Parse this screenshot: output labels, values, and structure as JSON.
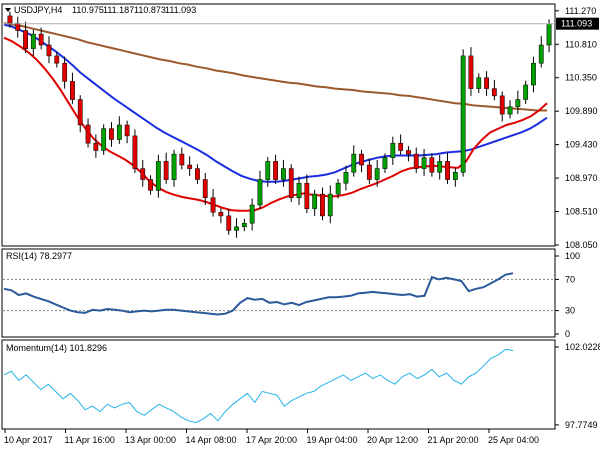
{
  "chart_data": [
    {
      "type": "candlestick",
      "title": "USDJPY,H4",
      "ohlc_header": [
        "110.975",
        "111.187",
        "110.873",
        "111.093"
      ],
      "current_price": 111.093,
      "current_price_label": "111.093",
      "ylim": [
        108.05,
        111.35
      ],
      "y_ticks": [
        111.27,
        110.81,
        110.35,
        109.89,
        109.43,
        108.97,
        108.51,
        108.05
      ],
      "y_tick_labels": [
        "111.270",
        "110.810",
        "110.350",
        "109.890",
        "109.430",
        "108.970",
        "108.510",
        "108.050"
      ],
      "x_tick_labels": [
        "10 Apr 2017",
        "11 Apr 16:00",
        "13 Apr 00:00",
        "14 Apr 08:00",
        "17 Apr 20:00",
        "19 Apr 04:00",
        "20 Apr 12:00",
        "21 Apr 20:00",
        "25 Apr 04:00"
      ],
      "colors": {
        "bull": "#00a000",
        "bear": "#e00000",
        "ma_fast": "#e00000",
        "ma_mid": "#1a2ee0",
        "ma_slow": "#9b5a2c"
      },
      "close": [
        111.1,
        111.0,
        110.75,
        110.95,
        110.8,
        110.65,
        110.55,
        110.3,
        110.05,
        109.7,
        109.45,
        109.35,
        109.65,
        109.5,
        109.7,
        109.55,
        109.1,
        108.95,
        108.8,
        109.2,
        108.95,
        109.3,
        109.15,
        109.1,
        108.95,
        108.7,
        108.5,
        108.45,
        108.25,
        108.3,
        108.35,
        108.6,
        108.95,
        109.2,
        108.95,
        109.1,
        108.7,
        108.9,
        108.55,
        108.75,
        108.45,
        108.75,
        108.9,
        109.05,
        109.3,
        109.15,
        108.95,
        109.1,
        109.25,
        109.45,
        109.35,
        109.3,
        109.1,
        109.25,
        109.05,
        109.2,
        108.95,
        109.05,
        110.65,
        110.2,
        110.35,
        110.2,
        110.1,
        109.85,
        109.95,
        110.05,
        110.25,
        110.55,
        110.8,
        111.093
      ],
      "ma_fast": [
        110.9,
        110.85,
        110.78,
        110.7,
        110.6,
        110.48,
        110.34,
        110.18,
        110.0,
        109.82,
        109.66,
        109.52,
        109.42,
        109.34,
        109.28,
        109.22,
        109.14,
        109.04,
        108.92,
        108.84,
        108.78,
        108.74,
        108.71,
        108.69,
        108.67,
        108.64,
        108.6,
        108.56,
        108.53,
        108.52,
        108.52,
        108.53,
        108.57,
        108.63,
        108.68,
        108.72,
        108.74,
        108.76,
        108.74,
        108.73,
        108.72,
        108.72,
        108.74,
        108.77,
        108.82,
        108.86,
        108.9,
        108.95,
        109.0,
        109.06,
        109.1,
        109.12,
        109.13,
        109.14,
        109.13,
        109.12,
        109.11,
        109.2,
        109.38,
        109.5,
        109.6,
        109.65,
        109.7,
        109.73,
        109.77,
        109.82,
        109.9,
        110.0
      ],
      "ma_mid": [
        111.08,
        111.05,
        111.0,
        110.95,
        110.88,
        110.8,
        110.72,
        110.63,
        110.53,
        110.42,
        110.33,
        110.24,
        110.15,
        110.06,
        109.98,
        109.9,
        109.82,
        109.74,
        109.66,
        109.59,
        109.53,
        109.47,
        109.41,
        109.35,
        109.28,
        109.2,
        109.13,
        109.06,
        109.0,
        108.96,
        108.93,
        108.92,
        108.92,
        108.93,
        108.95,
        108.97,
        108.99,
        109.0,
        109.02,
        109.05,
        109.1,
        109.15,
        109.19,
        109.22,
        109.25,
        109.27,
        109.28,
        109.28,
        109.28,
        109.28,
        109.29,
        109.3,
        109.32,
        109.33,
        109.34,
        109.36,
        109.4,
        109.44,
        109.48,
        109.52,
        109.56,
        109.6,
        109.65,
        109.72,
        109.8
      ],
      "ma_slow": [
        111.1,
        111.08,
        111.06,
        111.03,
        111.0,
        110.97,
        110.94,
        110.91,
        110.88,
        110.84,
        110.81,
        110.78,
        110.75,
        110.72,
        110.69,
        110.66,
        110.63,
        110.6,
        110.58,
        110.55,
        110.53,
        110.5,
        110.48,
        110.45,
        110.43,
        110.41,
        110.38,
        110.36,
        110.34,
        110.32,
        110.3,
        110.28,
        110.27,
        110.25,
        110.23,
        110.22,
        110.2,
        110.19,
        110.18,
        110.16,
        110.15,
        110.14,
        110.13,
        110.11,
        110.1,
        110.08,
        110.06,
        110.04,
        110.02,
        110.0,
        109.99,
        109.97,
        109.96,
        109.95,
        109.94,
        109.93,
        109.92,
        109.91,
        109.9,
        109.9
      ]
    },
    {
      "type": "line",
      "title": "RSI(14) 78.2977",
      "ylim": [
        0,
        100
      ],
      "y_ticks": [
        100,
        70,
        30,
        0
      ],
      "y_tick_labels": [
        "100",
        "70",
        "30",
        "0"
      ],
      "levels": [
        70,
        30
      ],
      "colors": {
        "line": "#2a5a9a"
      },
      "values": [
        58,
        56,
        50,
        52,
        48,
        45,
        42,
        38,
        34,
        30,
        28,
        27,
        31,
        30,
        32,
        31,
        30,
        28,
        29,
        30,
        29,
        30,
        31,
        31,
        30,
        29,
        28,
        27,
        26,
        25,
        26,
        30,
        40,
        46,
        44,
        45,
        40,
        41,
        38,
        40,
        37,
        41,
        43,
        45,
        47,
        47,
        48,
        49,
        52,
        53,
        54,
        53,
        52,
        51,
        50,
        51,
        48,
        49,
        73,
        70,
        72,
        70,
        68,
        55,
        58,
        60,
        65,
        70,
        76,
        78
      ]
    },
    {
      "type": "line",
      "title": "Momentum(14) 101.8296",
      "ylim": [
        97.77,
        102.0228
      ],
      "y_ticks": [
        102.0228,
        97.7749
      ],
      "y_tick_labels": [
        "102.0228",
        "97.7749"
      ],
      "colors": {
        "line": "#22b4ea"
      },
      "values": [
        100.5,
        100.7,
        100.2,
        100.5,
        100.1,
        99.7,
        100.0,
        99.6,
        99.2,
        99.5,
        99.1,
        98.6,
        98.8,
        98.5,
        98.9,
        98.7,
        98.9,
        99.0,
        98.5,
        98.3,
        98.6,
        98.9,
        98.7,
        98.5,
        98.2,
        98.0,
        97.9,
        98.1,
        98.4,
        98.0,
        98.5,
        98.9,
        99.2,
        99.5,
        99.0,
        99.6,
        99.5,
        99.4,
        98.8,
        99.1,
        99.3,
        99.5,
        99.6,
        99.9,
        100.1,
        100.3,
        100.5,
        100.2,
        100.4,
        100.6,
        100.3,
        100.5,
        100.2,
        100.0,
        100.4,
        100.6,
        100.3,
        100.5,
        100.8,
        100.4,
        100.6,
        100.2,
        100.0,
        100.4,
        100.6,
        101.0,
        101.4,
        101.6,
        101.9,
        101.83
      ]
    }
  ]
}
